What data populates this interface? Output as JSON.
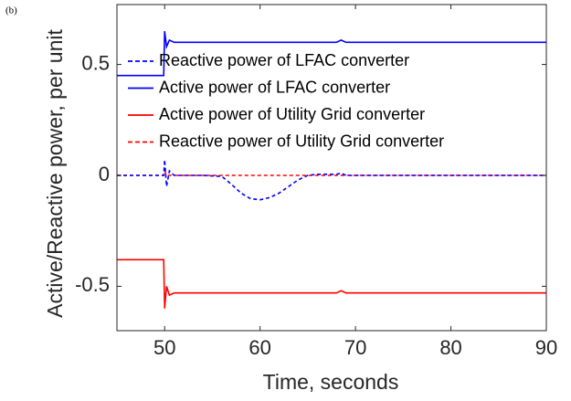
{
  "chart_data": {
    "type": "line",
    "panel": "(b)",
    "xlabel": "Time, seconds",
    "ylabel": "Active/Reactive power, per unit",
    "x": [
      45,
      46,
      47,
      48,
      49,
      49.9,
      50,
      50.2,
      50.5,
      51,
      52,
      54,
      56,
      57,
      58,
      59,
      60,
      61,
      62,
      63,
      64,
      65,
      66,
      68,
      68.5,
      69,
      70,
      75,
      80,
      85,
      90
    ],
    "series": [
      {
        "name": "Reactive power of LFAC converter",
        "color": "#0000ff",
        "dashed": true,
        "values": [
          0,
          0,
          0,
          0,
          0,
          0,
          0.07,
          -0.05,
          0.02,
          0,
          0,
          0,
          -0.005,
          -0.04,
          -0.08,
          -0.105,
          -0.11,
          -0.1,
          -0.08,
          -0.05,
          -0.02,
          0,
          0.005,
          0.005,
          0.01,
          0,
          0,
          0,
          0,
          0,
          0
        ]
      },
      {
        "name": "Active power of LFAC converter",
        "color": "#0000ff",
        "dashed": false,
        "values": [
          0.45,
          0.45,
          0.45,
          0.45,
          0.45,
          0.45,
          0.65,
          0.58,
          0.61,
          0.6,
          0.6,
          0.6,
          0.6,
          0.6,
          0.6,
          0.6,
          0.6,
          0.6,
          0.6,
          0.6,
          0.6,
          0.6,
          0.6,
          0.6,
          0.61,
          0.6,
          0.6,
          0.6,
          0.6,
          0.6,
          0.6
        ]
      },
      {
        "name": "Active power of Utility Grid converter",
        "color": "#ff0000",
        "dashed": false,
        "values": [
          -0.38,
          -0.38,
          -0.38,
          -0.38,
          -0.38,
          -0.38,
          -0.6,
          -0.5,
          -0.54,
          -0.53,
          -0.53,
          -0.53,
          -0.53,
          -0.53,
          -0.53,
          -0.53,
          -0.53,
          -0.53,
          -0.53,
          -0.53,
          -0.53,
          -0.53,
          -0.53,
          -0.53,
          -0.52,
          -0.53,
          -0.53,
          -0.53,
          -0.53,
          -0.53,
          -0.53
        ]
      },
      {
        "name": "Reactive power of Utility Grid converter",
        "color": "#ff0000",
        "dashed": true,
        "values": [
          0,
          0,
          0,
          0,
          0,
          0,
          0.02,
          0,
          0,
          0,
          0,
          0,
          0,
          0,
          0,
          0,
          0,
          0,
          0,
          0,
          0,
          0,
          0,
          0,
          0,
          0,
          0,
          0,
          0,
          0,
          0
        ]
      }
    ],
    "xlim": [
      45,
      90
    ],
    "ylim": [
      -0.7,
      0.77
    ],
    "xticks": [
      50,
      60,
      70,
      80,
      90
    ],
    "yticks": [
      -0.5,
      0,
      0.5
    ],
    "legend": "upper left",
    "grid": false
  }
}
